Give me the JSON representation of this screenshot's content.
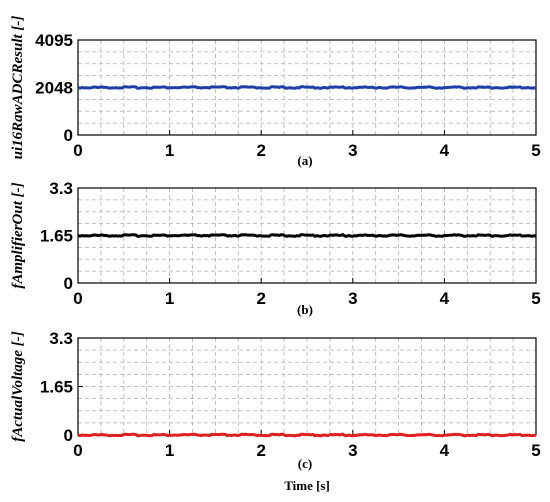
{
  "chart_data": [
    {
      "type": "line",
      "panel": "(a)",
      "ylabel": "ui16RawADCResult [-]",
      "xlim": [
        0,
        5
      ],
      "ylim": [
        0,
        4095
      ],
      "xticks": [
        "0",
        "1",
        "2",
        "3",
        "4",
        "5"
      ],
      "yticks": [
        "0",
        "2048",
        "4095"
      ],
      "ytick_values": [
        0,
        2048,
        4095
      ],
      "grid": true,
      "series": [
        {
          "color": "#1f3fa8",
          "x": [
            0,
            5
          ],
          "values": [
            2048,
            2048
          ]
        }
      ]
    },
    {
      "type": "line",
      "panel": "(b)",
      "ylabel": "fAmplifierOut [-]",
      "xlim": [
        0,
        5
      ],
      "ylim": [
        0,
        3.3
      ],
      "xticks": [
        "0",
        "1",
        "2",
        "3",
        "4",
        "5"
      ],
      "yticks": [
        "0",
        "1.65",
        "3.3"
      ],
      "ytick_values": [
        0,
        1.65,
        3.3
      ],
      "grid": true,
      "series": [
        {
          "color": "#000000",
          "x": [
            0,
            5
          ],
          "values": [
            1.65,
            1.65
          ]
        }
      ]
    },
    {
      "type": "line",
      "panel": "(c)",
      "ylabel": "fActualVoltage [-]",
      "xlabel": "Time [s]",
      "xlim": [
        0,
        5
      ],
      "ylim": [
        0,
        3.3
      ],
      "xticks": [
        "0",
        "1",
        "2",
        "3",
        "4",
        "5"
      ],
      "yticks": [
        "0",
        "1.65",
        "3.3"
      ],
      "ytick_values": [
        0,
        1.65,
        3.3
      ],
      "grid": true,
      "series": [
        {
          "color": "#e02020",
          "x": [
            0,
            5
          ],
          "values": [
            0,
            0
          ]
        }
      ]
    }
  ]
}
